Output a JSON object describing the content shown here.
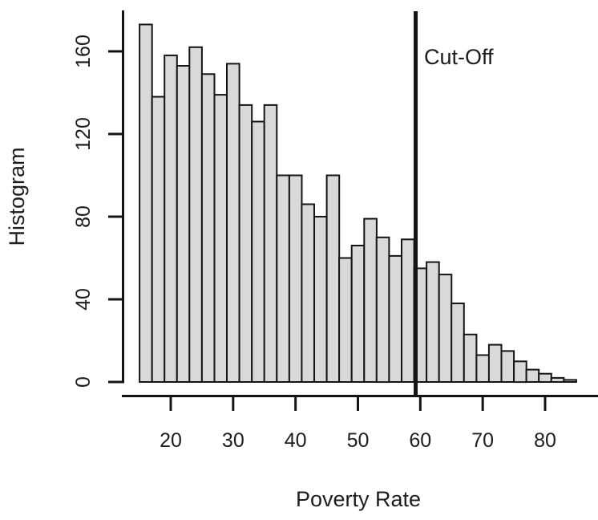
{
  "figure": {
    "background": "#ffffff",
    "text_color": "#1d1d1d"
  },
  "chart_data": {
    "type": "bar",
    "subtype": "histogram",
    "title": "",
    "xlabel": "Poverty Rate",
    "ylabel": "Histogram",
    "bin_start": 15,
    "bin_width": 2,
    "counts": [
      173,
      138,
      158,
      153,
      162,
      149,
      139,
      154,
      134,
      126,
      134,
      100,
      100,
      86,
      80,
      100,
      60,
      66,
      79,
      70,
      61,
      69,
      55,
      58,
      52,
      38,
      23,
      13,
      18,
      15,
      10,
      6,
      4,
      2,
      1
    ],
    "xticks": [
      20,
      30,
      40,
      50,
      60,
      70,
      80
    ],
    "yticks": [
      0,
      40,
      80,
      120,
      160
    ],
    "xlim": [
      15,
      85
    ],
    "ylim": [
      0,
      175
    ],
    "grid": false,
    "legend": false,
    "bar_fill": "#d9d9d9",
    "bar_border": "#141414",
    "axis_color": "#141414",
    "cutoff": {
      "label": "Cut-Off",
      "x": 59,
      "color": "#141414"
    }
  }
}
